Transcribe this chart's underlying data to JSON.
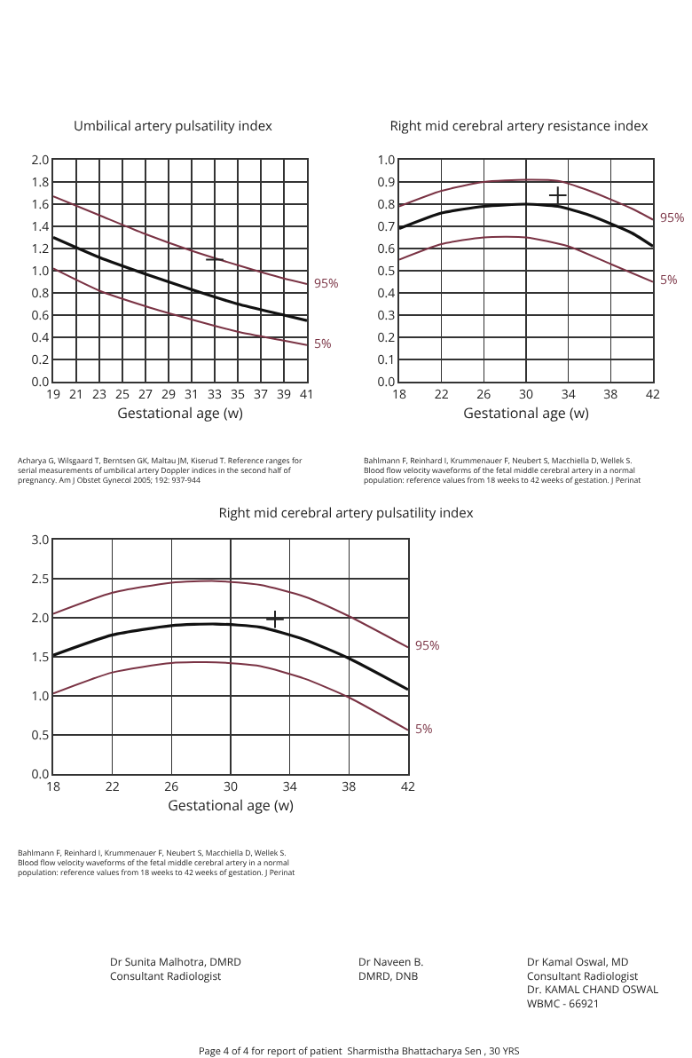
{
  "chart_data": [
    {
      "type": "line",
      "title": "Umbilical artery pulsatility index",
      "xlabel": "Gestational age (w)",
      "xlim": [
        19,
        41
      ],
      "xticks": [
        19,
        21,
        23,
        25,
        27,
        29,
        31,
        33,
        35,
        37,
        39,
        41
      ],
      "ylim": [
        0,
        2
      ],
      "yticks": [
        {
          "value": 0,
          "label": "0.0"
        },
        0.2,
        0.4,
        0.6,
        0.8,
        {
          "value": 1,
          "label": "1.0"
        },
        1.2,
        1.4,
        1.6,
        1.8,
        {
          "value": 2,
          "label": "2.0"
        }
      ],
      "grid": true,
      "legend": false,
      "series": [
        {
          "name": "95%",
          "color": "#7a3344",
          "marker": "none",
          "x": [
            19,
            23,
            27,
            31,
            35,
            39,
            41
          ],
          "values": [
            1.67,
            1.5,
            1.33,
            1.18,
            1.05,
            0.93,
            0.88
          ]
        },
        {
          "color": "#111111",
          "marker": "none",
          "x": [
            19,
            23,
            27,
            31,
            35,
            39,
            41
          ],
          "values": [
            1.3,
            1.12,
            0.97,
            0.83,
            0.7,
            0.6,
            0.55
          ]
        },
        {
          "name": "5%",
          "color": "#7a3344",
          "marker": "none",
          "x": [
            19,
            23,
            27,
            31,
            35,
            39,
            41
          ],
          "values": [
            1.02,
            0.82,
            0.68,
            0.56,
            0.45,
            0.37,
            0.33
          ]
        },
        {
          "type": "scatter",
          "color": "#222222",
          "marker": "cross",
          "x": [
            33
          ],
          "values": [
            1.1
          ]
        }
      ],
      "annotations": [
        "Acharya G, Wilsgaard T, Berntsen GK, Maltau JM, Kiserud T. Reference ranges for\nserial measurements of umbilical artery Doppler indices in the second half of\npregnancy. Am J Obstet Gynecol 2005; 192: 937-944"
      ]
    },
    {
      "type": "line",
      "title": "Right mid cerebral artery resistance index",
      "xlabel": "Gestational age (w)",
      "xlim": [
        18,
        42
      ],
      "xticks": [
        18,
        22,
        26,
        30,
        34,
        38,
        42
      ],
      "ylim": [
        0,
        1
      ],
      "yticks": [
        {
          "value": 0,
          "label": "0.0"
        },
        0.1,
        0.2,
        0.3,
        0.4,
        0.5,
        0.6,
        0.7,
        0.8,
        0.9,
        {
          "value": 1,
          "label": "1.0"
        }
      ],
      "grid": true,
      "legend": false,
      "series": [
        {
          "name": "95%",
          "color": "#7a3344",
          "marker": "none",
          "x": [
            18,
            22,
            26,
            30,
            33,
            36,
            40,
            42
          ],
          "values": [
            0.79,
            0.86,
            0.9,
            0.91,
            0.905,
            0.86,
            0.78,
            0.73
          ]
        },
        {
          "color": "#111111",
          "marker": "none",
          "x": [
            18,
            22,
            26,
            30,
            33,
            36,
            40,
            42
          ],
          "values": [
            0.69,
            0.76,
            0.79,
            0.8,
            0.79,
            0.75,
            0.67,
            0.61
          ]
        },
        {
          "name": "5%",
          "color": "#7a3344",
          "marker": "none",
          "x": [
            18,
            22,
            26,
            30,
            34,
            38,
            42
          ],
          "values": [
            0.55,
            0.62,
            0.65,
            0.65,
            0.61,
            0.53,
            0.45
          ]
        },
        {
          "type": "scatter",
          "color": "#222222",
          "marker": "cross",
          "x": [
            33
          ],
          "values": [
            0.84
          ]
        }
      ],
      "annotations": [
        "Bahlmann F, Reinhard I, Krummenauer F, Neubert S, Macchiella D, Wellek S.\nBlood flow velocity waveforms of the fetal middle cerebral artery in a normal\npopulation: reference values from 18 weeks to 42 weeks of gestation. J Perinat"
      ]
    },
    {
      "type": "line",
      "title": "Right mid cerebral artery pulsatility index",
      "xlabel": "Gestational age (w)",
      "xlim": [
        18,
        42
      ],
      "xticks": [
        18,
        22,
        26,
        30,
        34,
        38,
        42
      ],
      "ylim": [
        0,
        3
      ],
      "yticks": [
        {
          "value": 0,
          "label": "0.0"
        },
        0.5,
        {
          "value": 1,
          "label": "1.0"
        },
        1.5,
        {
          "value": 2,
          "label": "2.0"
        },
        2.5,
        {
          "value": 3,
          "label": "3.0"
        }
      ],
      "grid": true,
      "legend": false,
      "series": [
        {
          "name": "95%",
          "color": "#7a3344",
          "marker": "none",
          "x": [
            18,
            22,
            26,
            29,
            32,
            35,
            38,
            42
          ],
          "values": [
            2.05,
            2.32,
            2.45,
            2.47,
            2.42,
            2.27,
            2.02,
            1.62
          ]
        },
        {
          "color": "#111111",
          "marker": "none",
          "x": [
            18,
            22,
            26,
            29,
            32,
            35,
            38,
            42
          ],
          "values": [
            1.52,
            1.78,
            1.9,
            1.92,
            1.88,
            1.72,
            1.48,
            1.08
          ]
        },
        {
          "name": "5%",
          "color": "#7a3344",
          "marker": "none",
          "x": [
            18,
            22,
            26,
            29,
            32,
            35,
            38,
            42
          ],
          "values": [
            1.03,
            1.3,
            1.42,
            1.43,
            1.38,
            1.22,
            0.98,
            0.56
          ]
        },
        {
          "type": "scatter",
          "color": "#222222",
          "marker": "cross",
          "x": [
            33
          ],
          "values": [
            1.98
          ]
        }
      ],
      "annotations": [
        "Bahlmann F, Reinhard I, Krummenauer F, Neubert S, Macchiella D, Wellek S.\nBlood flow velocity waveforms of the fetal middle cerebral artery in a normal\npopulation: reference values from 18 weeks to 42 weeks of gestation. J Perinat",
        "Dr Sunita Malhotra, DMRD\nConsultant Radiologist",
        "Dr Naveen B.\nDMRD, DNB",
        "Dr Kamal Oswal, MD\nConsultant Radiologist\nDr. KAMAL CHAND OSWAL\nWBMC - 66921",
        "Page 4 of 4 for report of patient  Sharmistha Bhattacharya Sen , 30 YRS"
      ]
    }
  ]
}
